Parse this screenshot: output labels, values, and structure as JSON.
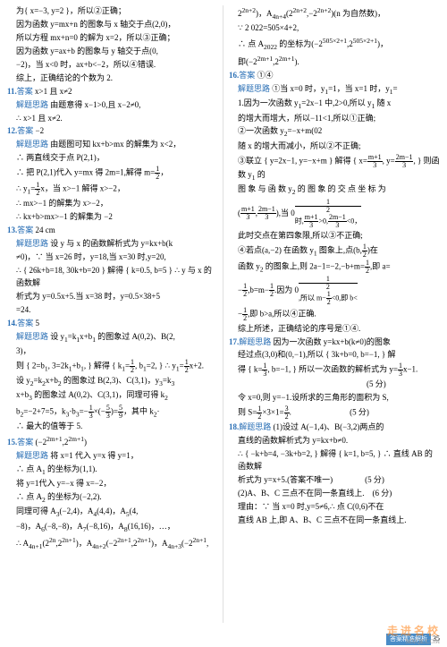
{
  "columns": [
    {
      "lines": [
        {
          "cls": "indent",
          "html": "为{ x=−3, y=2 }，所以②正确；"
        },
        {
          "cls": "indent",
          "html": "因为函数 y=mx+n 的图象与 x 轴交于点(2,0)，"
        },
        {
          "cls": "indent",
          "html": "所以方程 mx+n=0 的解为 x=2，所以③正确；"
        },
        {
          "cls": "indent",
          "html": "因为函数 y=ax+b 的图象与 y 轴交于点(0,"
        },
        {
          "cls": "indent",
          "html": "−2)，当 x<0 时，ax+b<−2，所以④错误."
        },
        {
          "cls": "indent",
          "html": "综上，正确结论的个数为 2."
        },
        {
          "html": "<span class='num'>11.</span><span class='label'>答案</span> x>1 且 x≠2"
        },
        {
          "cls": "indent",
          "html": "<span class='label'>解题思路</span> 由题意得 x−1>0,且 x−2≠0,"
        },
        {
          "cls": "indent",
          "html": "∴ x>1 且 x≠2."
        },
        {
          "html": "<span class='num'>12.</span><span class='label'>答案</span> −2<x<2"
        },
        {
          "cls": "indent",
          "html": "<span class='label'>解题思路</span> 由题图可知 kx+b>mx 的解集为 x<2，"
        },
        {
          "cls": "indent",
          "html": "∴ 两直线交于点 P(2,1)，"
        },
        {
          "cls": "indent",
          "html": "∴ 把 P(2,1)代入 y=mx 得 2m=1,解得 m=<span class='frac'><span class='n'>1</span><span class='d'>2</span></span>，"
        },
        {
          "cls": "indent",
          "html": "∴ y<sub>1</sub>=<span class='frac'><span class='n'>1</span><span class='d'>2</span></span>x，当 x>−1 解得 x>−2，"
        },
        {
          "cls": "indent",
          "html": "∴ mx>−1 的解集为 x>−2，"
        },
        {
          "cls": "indent",
          "html": "∴ kx+b>mx>−1 的解集为 −2<x<2."
        },
        {
          "html": "<span class='num'>13.</span><span class='label'>答案</span> 24 cm"
        },
        {
          "cls": "indent",
          "html": "<span class='label'>解题思路</span> 设 y 与 x 的函数解析式为 y=kx+b(k"
        },
        {
          "cls": "indent",
          "html": "≠0)，∵ 当 x=26 时，y=18,当 x=30 时,y=20,"
        },
        {
          "cls": "indent",
          "html": "∴ { 26k+b=18, 30k+b=20 } 解得 { k=0.5, b=5 } ∴ y 与 x 的函数解"
        },
        {
          "cls": "indent",
          "html": "析式为 y=0.5x+5.当 x=38 时，y=0.5×38+5"
        },
        {
          "cls": "indent",
          "html": "=24."
        },
        {
          "html": "<span class='num'>14.</span><span class='label'>答案</span> 5"
        },
        {
          "cls": "indent",
          "html": "<span class='label'>解题思路</span> 设 y<sub>1</sub>=k<sub>1</sub>x+b<sub>1</sub> 的图象过 A(0,2)、B(2,"
        },
        {
          "cls": "indent",
          "html": "3)，"
        },
        {
          "cls": "indent",
          "html": "则 { 2=b<sub>1</sub>, 3=2k<sub>1</sub>+b<sub>1</sub>, } 解得 { k<sub>1</sub>=<span class='frac'><span class='n'>1</span><span class='d'>2</span></span>, b<sub>1</sub>=2, } ∴ y<sub>1</sub>=<span class='frac'><span class='n'>1</span><span class='d'>2</span></span>x+2."
        },
        {
          "cls": "indent",
          "html": "设 y<sub>2</sub>=k<sub>2</sub>x+b<sub>2</sub> 的图象过 B(2,3)、C(3,1)，y<sub>3</sub>=k<sub>3</sub>"
        },
        {
          "cls": "indent",
          "html": "x+b<sub>3</sub> 的图象过 A(0,2)、C(3,1)，同理可得 k<sub>2</sub>"
        },
        {
          "cls": "indent",
          "html": "b<sub>2</sub>=−2+7=5，k<sub>3</sub>·b<sub>3</sub>=−<span class='frac'><span class='n'>1</span><span class='d'>3</span></span>×(−<span class='frac'><span class='n'>5</span><span class='d'>3</span></span>)=<span class='frac'><span class='n'>5</span><span class='d'>9</span></span>，其中 k<sub>2</sub>·"
        },
        {
          "cls": "indent",
          "html": "∴ 最大的值等于 5."
        },
        {
          "html": "<span class='num'>15.</span><span class='label'>答案</span> (−2<sup>2m+1</sup>,2<sup>2m+1</sup>)"
        },
        {
          "cls": "indent",
          "html": "<span class='label'>解题思路</span> 将 x=1 代入 y=x 得 y=1，"
        },
        {
          "cls": "indent",
          "html": "∴ 点 A<sub>1</sub> 的坐标为(1,1)."
        },
        {
          "cls": "indent",
          "html": "将 y=1代入 y=−x 得 x=−2，"
        },
        {
          "cls": "indent",
          "html": "∴ 点 A<sub>2</sub> 的坐标为(−2,2)."
        },
        {
          "cls": "indent",
          "html": "同理可得 A<sub>3</sub>(−2,4)，A<sub>4</sub>(4,4)，A<sub>5</sub>(4,"
        },
        {
          "cls": "indent",
          "html": "−8)，A<sub>6</sub>(−8,−8)，A<sub>7</sub>(−8,16)，A<sub>8</sub>(16,16)，…，"
        },
        {
          "cls": "indent",
          "html": "∴ A<sub>4n+1</sub>(2<sup>2n</sup>,2<sup>2n+1</sup>)，A<sub>4n+2</sub>(−2<sup>2n+1</sup>,2<sup>2n+1</sup>)，A<sub>4n+3</sub>(−2<sup>2n+1</sup>,"
        }
      ]
    },
    {
      "lines": [
        {
          "cls": "indent",
          "html": "2<sup>2n+2</sup>)，A<sub>4n+4</sub>(2<sup>2n+2</sup>,−2<sup>2n+2</sup>)(n 为自然数)，"
        },
        {
          "cls": "indent",
          "html": "∵ 2 022=505×4+2,"
        },
        {
          "cls": "indent",
          "html": "∴ 点 A<sub>2022</sub> 的坐标为(−2<sup>505×2+1</sup>,2<sup>505×2+1</sup>)，"
        },
        {
          "cls": "indent",
          "html": "即(−2<sup>2m+1</sup>,2<sup>2m+1</sup>)."
        },
        {
          "html": "<span class='num'>16.</span><span class='label'>答案</span> ①④"
        },
        {
          "cls": "indent",
          "html": "<span class='label'>解题思路</span> ①当 x=0 时，y<sub>1</sub>=1，当 x=1 时，y<sub>1</sub>="
        },
        {
          "cls": "indent",
          "html": "1.因为一次函数 y<sub>1</sub>=2x−1 中,2>0,所以 y<sub>1</sub> 随 x"
        },
        {
          "cls": "indent",
          "html": "的增大而增大，所以−1<y<sub>1</sub><1,所以①正确;"
        },
        {
          "cls": "indent",
          "html": "②一次函数 y<sub>2</sub>=−x+m(0<m<1)中，−1<0,所以 y<sub>2</sub>"
        },
        {
          "cls": "indent",
          "html": "随 x 的增大而减小，所以②不正确;"
        },
        {
          "cls": "indent",
          "html": "③联立 { y=2x−1, y=−x+m } 解得 { x=<span class='frac'><span class='n'>m+1</span><span class='d'>3</span></span>, y=<span class='frac'><span class='n'>2m−1</span><span class='d'>3</span></span>, } 则函数 y<sub>1</sub> 的"
        },
        {
          "cls": "indent",
          "html": "图 象 与 函 数 y<sub>2</sub> 的 图 象 的 交 点 坐 标 为"
        },
        {
          "cls": "indent",
          "html": "(<span class='frac'><span class='n'>m+1</span><span class='d'>3</span></span>,<span class='frac'><span class='n'>2m−1</span><span class='d'>3</span></span>),当 0<m<<span class='frac'><span class='n'>1</span><span class='d'>2</span></span>时,<span class='frac'><span class='n'>m+1</span><span class='d'>3</span></span>>0,<span class='frac'><span class='n'>2m−1</span><span class='d'>3</span></span><0，"
        },
        {
          "cls": "indent",
          "html": "此时交点在第四象限,所以③不正确;"
        },
        {
          "cls": "indent",
          "html": "④若点(a,−2) 在函数 y<sub>1</sub> 图象上,点(b,<span class='frac'><span class='n'>1</span><span class='d'>2</span></span>)在"
        },
        {
          "cls": "indent",
          "html": "函数 y<sub>2</sub> 的图象上,则 2a−1=−2,−b+m=<span class='frac'><span class='n'>1</span><span class='d'>2</span></span>,即 a="
        },
        {
          "cls": "indent",
          "html": "−<span class='frac'><span class='n'>1</span><span class='d'>2</span></span>,b=m−<span class='frac'><span class='n'>1</span><span class='d'>2</span></span>.因为 0<m<<span class='frac'><span class='n'>1</span><span class='d'>2</span></span>,所以 m−<span class='frac'><span class='n'>1</span><span class='d'>2</span></span><0,即 b<"
        },
        {
          "cls": "indent",
          "html": "−<span class='frac'><span class='n'>1</span><span class='d'>2</span></span>,即 b>a,所以④正确."
        },
        {
          "cls": "indent",
          "html": "综上所述，正确结论的序号是①④."
        },
        {
          "html": "<span class='num'>17.</span><span class='label'>解题思路</span> 因为一次函数 y=kx+b(k≠0)的图象"
        },
        {
          "cls": "indent",
          "html": "经过点(3,0)和(0,−1),所以 { 3k+b=0, b=−1, } 解"
        },
        {
          "cls": "indent",
          "html": "得 { k=<span class='frac'><span class='n'>1</span><span class='d'>3</span></span>, b=−1, } 所以一次函数的解析式为 y=<span class='frac'><span class='n'>1</span><span class='d'>3</span></span>x−1."
        },
        {
          "cls": "indent",
          "html": "　　　　　　　　　　　　　　　　(5 分)"
        },
        {
          "cls": "indent",
          "html": "令 x=0,则 y=−1.设所求的三角形的面积为 S,"
        },
        {
          "cls": "indent",
          "html": "则 S=<span class='frac'><span class='n'>1</span><span class='d'>2</span></span>×3×1=<span class='frac'><span class='n'>3</span><span class='d'>2</span></span>. 　　　　　　　(5 分)"
        },
        {
          "html": "<span class='num'>18.</span><span class='label'>解题思路</span> (1)设过 A(−1,4)、B(−3,2)两点的"
        },
        {
          "cls": "indent",
          "html": "直线的函数解析式为 y=kx+b≠0."
        },
        {
          "cls": "indent",
          "html": "∴ { −k+b=4, −3k+b=2, } 解得 { k=1, b=5, } ∴ 直线 AB 的函数解"
        },
        {
          "cls": "indent",
          "html": "析式为 y=x+5.(答案不唯一)　　　　(5 分)"
        },
        {
          "cls": "indent",
          "html": "(2)A、B、C 三点不在同一条直线上.　(6 分)"
        },
        {
          "cls": "indent",
          "html": "理由：∵ 当 x=0 时,y=5≠6,∴ 点 C(0,6)不在"
        },
        {
          "cls": "indent",
          "html": "直线 AB 上,即 A、B、C 三点不在同一条直线上."
        }
      ]
    }
  ],
  "footer": {
    "label": "答案精准解析",
    "page": "35"
  },
  "watermark": "走 进 名 校",
  "wm2": "MXQE.COM"
}
